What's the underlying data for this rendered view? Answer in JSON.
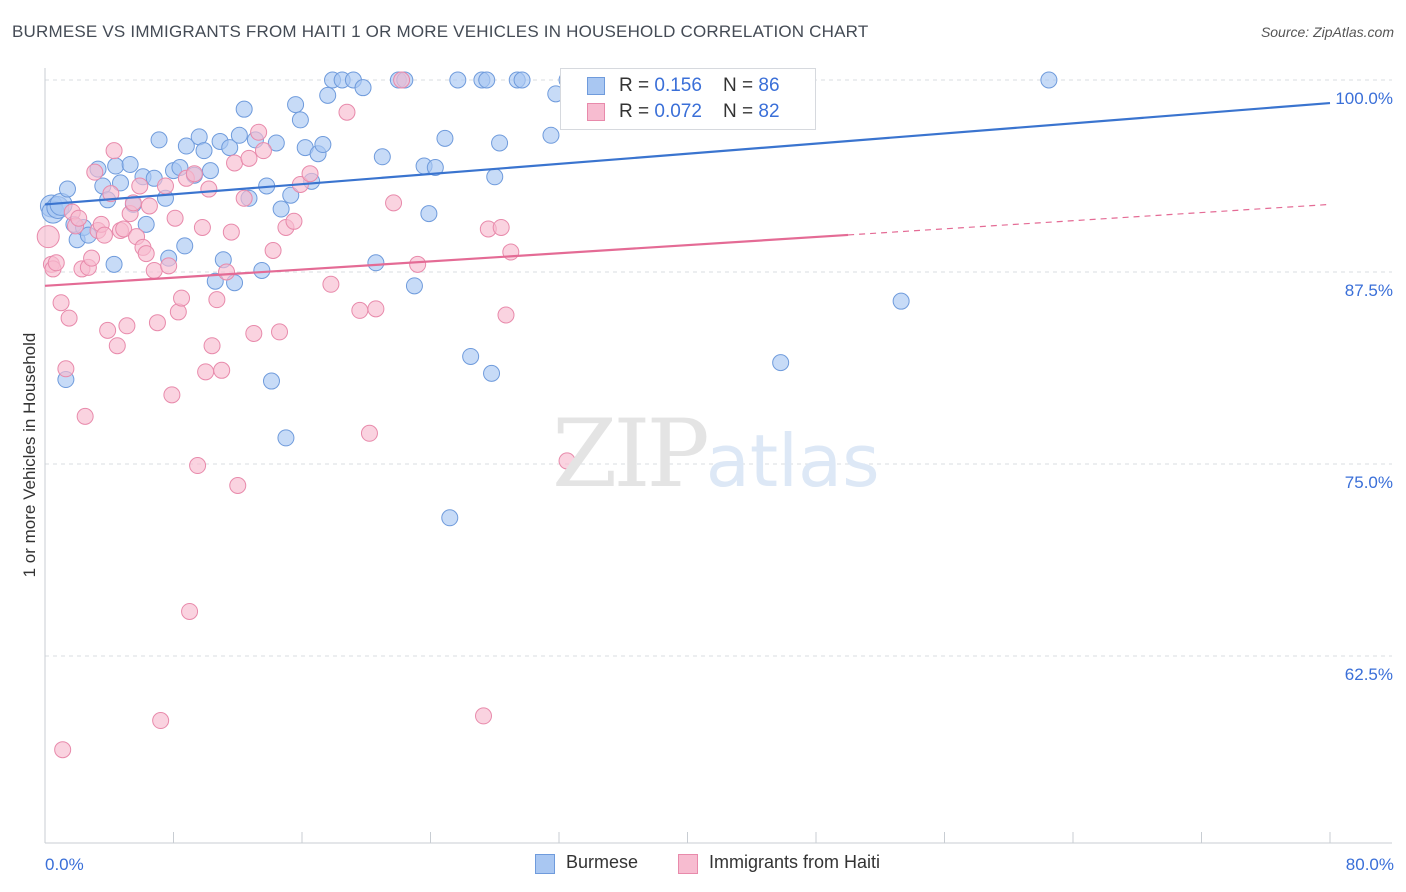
{
  "title": "BURMESE VS IMMIGRANTS FROM HAITI 1 OR MORE VEHICLES IN HOUSEHOLD CORRELATION CHART",
  "source": "Source: ZipAtlas.com",
  "watermark": {
    "zip": "ZIP",
    "atlas": "atlas"
  },
  "legend_top": {
    "rows": [
      {
        "r_label": "R = ",
        "r_value": "0.156",
        "n_label": "N = ",
        "n_value": "86"
      },
      {
        "r_label": "R = ",
        "r_value": "0.072",
        "n_label": "N = ",
        "n_value": "82"
      }
    ]
  },
  "legend_bottom": {
    "items": [
      {
        "label": "Burmese"
      },
      {
        "label": "Immigrants from Haiti"
      }
    ]
  },
  "colors": {
    "burmese_fill": "#a9c7f2",
    "burmese_stroke": "#6f9bdc",
    "burmese_line": "#3a74cf",
    "haiti_fill": "#f7bcd0",
    "haiti_stroke": "#e88aab",
    "haiti_line": "#e46b95",
    "tick_label": "#3a6fd8",
    "grid": "#d9dde2"
  },
  "chart_data": {
    "type": "scatter",
    "title": "BURMESE VS IMMIGRANTS FROM HAITI 1 OR MORE VEHICLES IN HOUSEHOLD CORRELATION CHART",
    "xlabel": "",
    "ylabel": "1 or more Vehicles in Household",
    "xlim": [
      0,
      80
    ],
    "ylim": [
      50,
      100
    ],
    "x_ticks": [
      "0.0%",
      "80.0%"
    ],
    "y_ticks": [
      {
        "value": 100,
        "label": "100.0%"
      },
      {
        "value": 87.5,
        "label": "87.5%"
      },
      {
        "value": 75,
        "label": "75.0%"
      },
      {
        "value": 62.5,
        "label": "62.5%"
      }
    ],
    "grid": true,
    "legend_position": "top-center",
    "series": [
      {
        "name": "Burmese",
        "R": 0.156,
        "N": 86,
        "trend": {
          "x": [
            0,
            80
          ],
          "y": [
            91.9,
            98.5
          ],
          "dashed_from": null
        },
        "points": [
          [
            0.4,
            91.8
          ],
          [
            0.5,
            91.4
          ],
          [
            0.8,
            91.7
          ],
          [
            1.0,
            91.9
          ],
          [
            1.4,
            92.9
          ],
          [
            1.3,
            80.5
          ],
          [
            1.8,
            90.6
          ],
          [
            2.0,
            89.6
          ],
          [
            2.4,
            90.4
          ],
          [
            2.7,
            89.9
          ],
          [
            3.3,
            94.2
          ],
          [
            3.6,
            93.1
          ],
          [
            3.9,
            92.2
          ],
          [
            4.3,
            88.0
          ],
          [
            4.4,
            94.4
          ],
          [
            4.7,
            93.3
          ],
          [
            5.3,
            94.5
          ],
          [
            5.5,
            91.9
          ],
          [
            6.1,
            93.7
          ],
          [
            6.3,
            90.6
          ],
          [
            6.8,
            93.6
          ],
          [
            7.1,
            96.1
          ],
          [
            7.5,
            92.3
          ],
          [
            7.7,
            88.4
          ],
          [
            8.0,
            94.1
          ],
          [
            8.4,
            94.3
          ],
          [
            8.7,
            89.2
          ],
          [
            8.8,
            95.7
          ],
          [
            9.3,
            93.8
          ],
          [
            9.6,
            96.3
          ],
          [
            9.9,
            95.4
          ],
          [
            10.3,
            94.1
          ],
          [
            10.6,
            86.9
          ],
          [
            10.9,
            96.0
          ],
          [
            11.1,
            88.3
          ],
          [
            11.5,
            95.6
          ],
          [
            11.8,
            86.8
          ],
          [
            12.1,
            96.4
          ],
          [
            12.4,
            98.1
          ],
          [
            12.7,
            92.3
          ],
          [
            13.1,
            96.1
          ],
          [
            13.5,
            87.6
          ],
          [
            13.8,
            93.1
          ],
          [
            14.1,
            80.4
          ],
          [
            14.4,
            95.9
          ],
          [
            14.7,
            91.6
          ],
          [
            15.0,
            76.7
          ],
          [
            15.3,
            92.5
          ],
          [
            15.6,
            98.4
          ],
          [
            15.9,
            97.4
          ],
          [
            16.2,
            95.6
          ],
          [
            16.6,
            93.4
          ],
          [
            17.0,
            95.2
          ],
          [
            17.3,
            95.8
          ],
          [
            17.6,
            99.0
          ],
          [
            17.9,
            100.0
          ],
          [
            18.5,
            100.0
          ],
          [
            19.2,
            100.0
          ],
          [
            19.8,
            99.5
          ],
          [
            20.6,
            88.1
          ],
          [
            21.0,
            95.0
          ],
          [
            22.0,
            100.0
          ],
          [
            22.4,
            100.0
          ],
          [
            23.0,
            86.6
          ],
          [
            23.6,
            94.4
          ],
          [
            23.9,
            91.3
          ],
          [
            24.3,
            94.3
          ],
          [
            24.9,
            96.2
          ],
          [
            25.2,
            71.5
          ],
          [
            25.7,
            100.0
          ],
          [
            26.5,
            82.0
          ],
          [
            27.2,
            100.0
          ],
          [
            27.5,
            100.0
          ],
          [
            27.8,
            80.9
          ],
          [
            28.0,
            93.7
          ],
          [
            28.3,
            95.9
          ],
          [
            29.4,
            100.0
          ],
          [
            29.7,
            100.0
          ],
          [
            31.5,
            96.4
          ],
          [
            31.8,
            99.1
          ],
          [
            32.5,
            100.0
          ],
          [
            32.8,
            100.0
          ],
          [
            39.5,
            98.5
          ],
          [
            45.8,
            81.6
          ],
          [
            53.3,
            85.6
          ],
          [
            62.5,
            100.0
          ]
        ]
      },
      {
        "name": "Immigrants from Haiti",
        "R": 0.072,
        "N": 82,
        "trend": {
          "x": [
            0,
            80
          ],
          "y": [
            86.6,
            91.9
          ],
          "dashed_from": 50
        },
        "points": [
          [
            0.2,
            89.8
          ],
          [
            0.4,
            88.0
          ],
          [
            0.5,
            87.7
          ],
          [
            0.7,
            88.1
          ],
          [
            1.0,
            85.5
          ],
          [
            1.1,
            56.4
          ],
          [
            1.3,
            81.2
          ],
          [
            1.5,
            84.5
          ],
          [
            1.7,
            91.4
          ],
          [
            1.9,
            90.5
          ],
          [
            2.1,
            91.0
          ],
          [
            2.3,
            87.7
          ],
          [
            2.5,
            78.1
          ],
          [
            2.7,
            87.8
          ],
          [
            2.9,
            88.4
          ],
          [
            3.1,
            94.0
          ],
          [
            3.3,
            90.2
          ],
          [
            3.5,
            90.6
          ],
          [
            3.7,
            89.9
          ],
          [
            3.9,
            83.7
          ],
          [
            4.1,
            92.6
          ],
          [
            4.3,
            95.4
          ],
          [
            4.5,
            82.7
          ],
          [
            4.7,
            90.2
          ],
          [
            4.9,
            90.3
          ],
          [
            5.1,
            84.0
          ],
          [
            5.3,
            91.3
          ],
          [
            5.5,
            92.0
          ],
          [
            5.7,
            89.8
          ],
          [
            5.9,
            93.1
          ],
          [
            6.1,
            89.1
          ],
          [
            6.3,
            88.7
          ],
          [
            6.5,
            91.8
          ],
          [
            6.8,
            87.6
          ],
          [
            7.0,
            84.2
          ],
          [
            7.2,
            58.3
          ],
          [
            7.5,
            93.1
          ],
          [
            7.7,
            87.9
          ],
          [
            7.9,
            79.5
          ],
          [
            8.1,
            91.0
          ],
          [
            8.3,
            84.9
          ],
          [
            8.5,
            85.8
          ],
          [
            8.8,
            93.6
          ],
          [
            9.0,
            65.4
          ],
          [
            9.3,
            93.9
          ],
          [
            9.5,
            74.9
          ],
          [
            9.8,
            90.4
          ],
          [
            10.0,
            81.0
          ],
          [
            10.2,
            92.9
          ],
          [
            10.4,
            82.7
          ],
          [
            10.7,
            85.7
          ],
          [
            11.0,
            81.1
          ],
          [
            11.3,
            87.5
          ],
          [
            11.6,
            90.1
          ],
          [
            11.8,
            94.6
          ],
          [
            12.0,
            73.6
          ],
          [
            12.4,
            92.3
          ],
          [
            12.7,
            94.9
          ],
          [
            13.0,
            83.5
          ],
          [
            13.3,
            96.6
          ],
          [
            13.6,
            95.4
          ],
          [
            14.2,
            88.9
          ],
          [
            14.6,
            83.6
          ],
          [
            15.0,
            90.4
          ],
          [
            15.5,
            90.8
          ],
          [
            15.9,
            93.2
          ],
          [
            16.5,
            93.9
          ],
          [
            17.8,
            86.7
          ],
          [
            18.8,
            97.9
          ],
          [
            19.6,
            85.0
          ],
          [
            20.2,
            77.0
          ],
          [
            20.6,
            85.1
          ],
          [
            21.7,
            92.0
          ],
          [
            22.2,
            100.0
          ],
          [
            23.2,
            88.0
          ],
          [
            27.3,
            58.6
          ],
          [
            27.6,
            90.3
          ],
          [
            28.4,
            90.4
          ],
          [
            28.7,
            84.7
          ],
          [
            29.0,
            88.8
          ],
          [
            32.5,
            75.2
          ],
          [
            34.0,
            98.3
          ]
        ]
      }
    ]
  },
  "ylabel": "1 or more Vehicles in Household"
}
